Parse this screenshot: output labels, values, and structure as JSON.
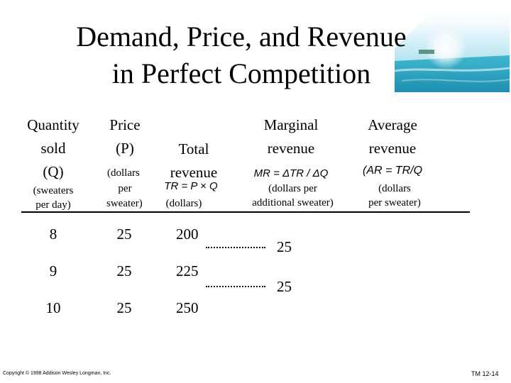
{
  "title": {
    "line1": "Demand, Price, and Revenue",
    "line2": "in Perfect Competition"
  },
  "columns": {
    "quantity": {
      "line1": "Quantity",
      "line2": "sold",
      "line3": "(Q)",
      "unit1": "(sweaters",
      "unit2": "per day)"
    },
    "price": {
      "line1": "Price",
      "line2": "(P)",
      "unit1": "(dollars",
      "unit2": "per",
      "unit3": "sweater)"
    },
    "total": {
      "line1": "Total",
      "line2": "revenue",
      "formula": "TR = P × Q",
      "unit1": "(dollars)"
    },
    "marginal": {
      "line1": "Marginal",
      "line2": "revenue",
      "formula": "MR = ΔTR / ΔQ",
      "unit1": "(dollars per",
      "unit2": "additional sweater)"
    },
    "average": {
      "line1": "Average",
      "line2": "revenue",
      "formula": "(AR = TR/Q",
      "unit1": "(dollars",
      "unit2": "per sweater)"
    }
  },
  "rows": [
    {
      "q": "8",
      "p": "25",
      "tr": "200"
    },
    {
      "q": "9",
      "p": "25",
      "tr": "225"
    },
    {
      "q": "10",
      "p": "25",
      "tr": "250"
    }
  ],
  "marginal_values": [
    "25",
    "25"
  ],
  "footer": {
    "copyright": "Copyright © 1998 Addison Wesley Longman, Inc.",
    "slide": "TM 12-14"
  },
  "colors": {
    "text": "#000000",
    "background": "#ffffff",
    "sea": "#3fb7cf",
    "sky": "#e9f6fb"
  }
}
